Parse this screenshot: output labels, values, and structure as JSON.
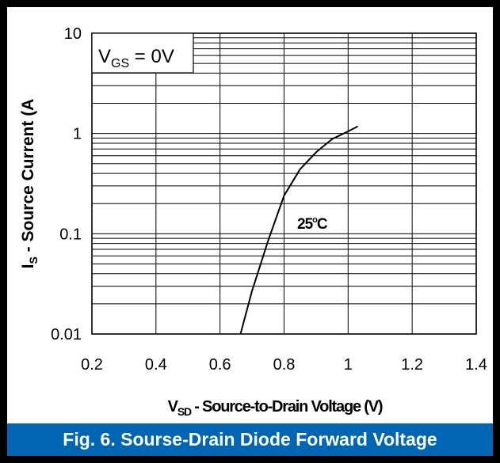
{
  "colors": {
    "frame": "#000000",
    "caption_bg": "#0066b3",
    "caption_text": "#ffffff",
    "curve": "#000000"
  },
  "caption": "Fig. 6.  Sourse-Drain Diode Forward Voltage",
  "chart_data": {
    "type": "line",
    "title": "",
    "xlabel": {
      "main": "V",
      "sub": "SD",
      "rest": " - Source-to-Drain Voltage (V)"
    },
    "ylabel": {
      "main": "I",
      "sub": "S",
      "rest": " - Source Current (A"
    },
    "x_ticks": [
      "0.2",
      "0.4",
      "0.6",
      "0.8",
      "1",
      "1.2",
      "1.4"
    ],
    "y_ticks": [
      "0.01",
      "0.1",
      "1",
      "10"
    ],
    "xlim": [
      0.2,
      1.4
    ],
    "ylim": [
      0.01,
      10
    ],
    "y_scale": "log",
    "grid": true,
    "condition": {
      "main": "V",
      "sub": "GS",
      "rest": " = 0V"
    },
    "series": [
      {
        "name": "25ºC",
        "label_main": "25",
        "label_sup": "o",
        "label_rest": "C",
        "x": [
          0.664,
          0.7,
          0.75,
          0.8,
          0.85,
          0.9,
          0.95,
          1.0,
          1.03
        ],
        "y": [
          0.01,
          0.027,
          0.085,
          0.24,
          0.44,
          0.65,
          0.88,
          1.05,
          1.18
        ]
      }
    ]
  }
}
